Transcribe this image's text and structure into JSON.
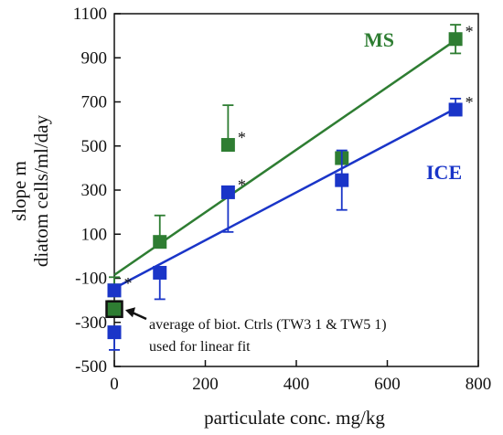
{
  "chart_data": {
    "type": "scatter",
    "xlabel": "particulate conc. mg/kg",
    "ylabel_line1": "slope m",
    "ylabel_line2": "diatom cells/ml/day",
    "xlim": [
      0,
      800
    ],
    "ylim": [
      -500,
      1100
    ],
    "x_ticks": [
      0,
      200,
      400,
      600,
      800
    ],
    "y_ticks": [
      -500,
      -300,
      -100,
      100,
      300,
      500,
      700,
      900,
      1100
    ],
    "grid": false,
    "series": [
      {
        "name": "MS",
        "color": "#2e7d32",
        "points": [
          {
            "x": 0,
            "y": -230,
            "err_low": 0,
            "err_high": 0,
            "star": false
          },
          {
            "x": 0,
            "y": -155,
            "err_low": 0,
            "err_high": 60,
            "star": true
          },
          {
            "x": 100,
            "y": 65,
            "err_low": 0,
            "err_high": 120,
            "star": false
          },
          {
            "x": 250,
            "y": 505,
            "err_low": 0,
            "err_high": 180,
            "star": true
          },
          {
            "x": 500,
            "y": 445,
            "err_low": 0,
            "err_high": 0,
            "star": false
          },
          {
            "x": 750,
            "y": 985,
            "err_low": 65,
            "err_high": 65,
            "star": true
          }
        ],
        "fit": {
          "x0": 0,
          "y0": -85,
          "x1": 750,
          "y1": 980
        }
      },
      {
        "name": "ICE",
        "color": "#1a35c8",
        "points": [
          {
            "x": 0,
            "y": -345,
            "err_low": 80,
            "err_high": 0,
            "star": false
          },
          {
            "x": 0,
            "y": -155,
            "err_low": 0,
            "err_high": 0,
            "star": false
          },
          {
            "x": 100,
            "y": -75,
            "err_low": 120,
            "err_high": 0,
            "star": false
          },
          {
            "x": 250,
            "y": 290,
            "err_low": 180,
            "err_high": 0,
            "star": true
          },
          {
            "x": 500,
            "y": 345,
            "err_low": 135,
            "err_high": 135,
            "star": false
          },
          {
            "x": 750,
            "y": 665,
            "err_low": 0,
            "err_high": 50,
            "star": true
          }
        ],
        "fit": {
          "x0": 0,
          "y0": -145,
          "x1": 750,
          "y1": 670
        }
      }
    ],
    "control_point": {
      "x": 0,
      "y": -240,
      "color": "#2e7d32",
      "outline": "#111111"
    },
    "annotation": {
      "line1": "average of biot. Ctrls (TW3 1 & TW5 1)",
      "line2": "used for linear fit",
      "arrow_to": {
        "x": 0,
        "y": -240
      }
    },
    "star_symbol": "*"
  }
}
